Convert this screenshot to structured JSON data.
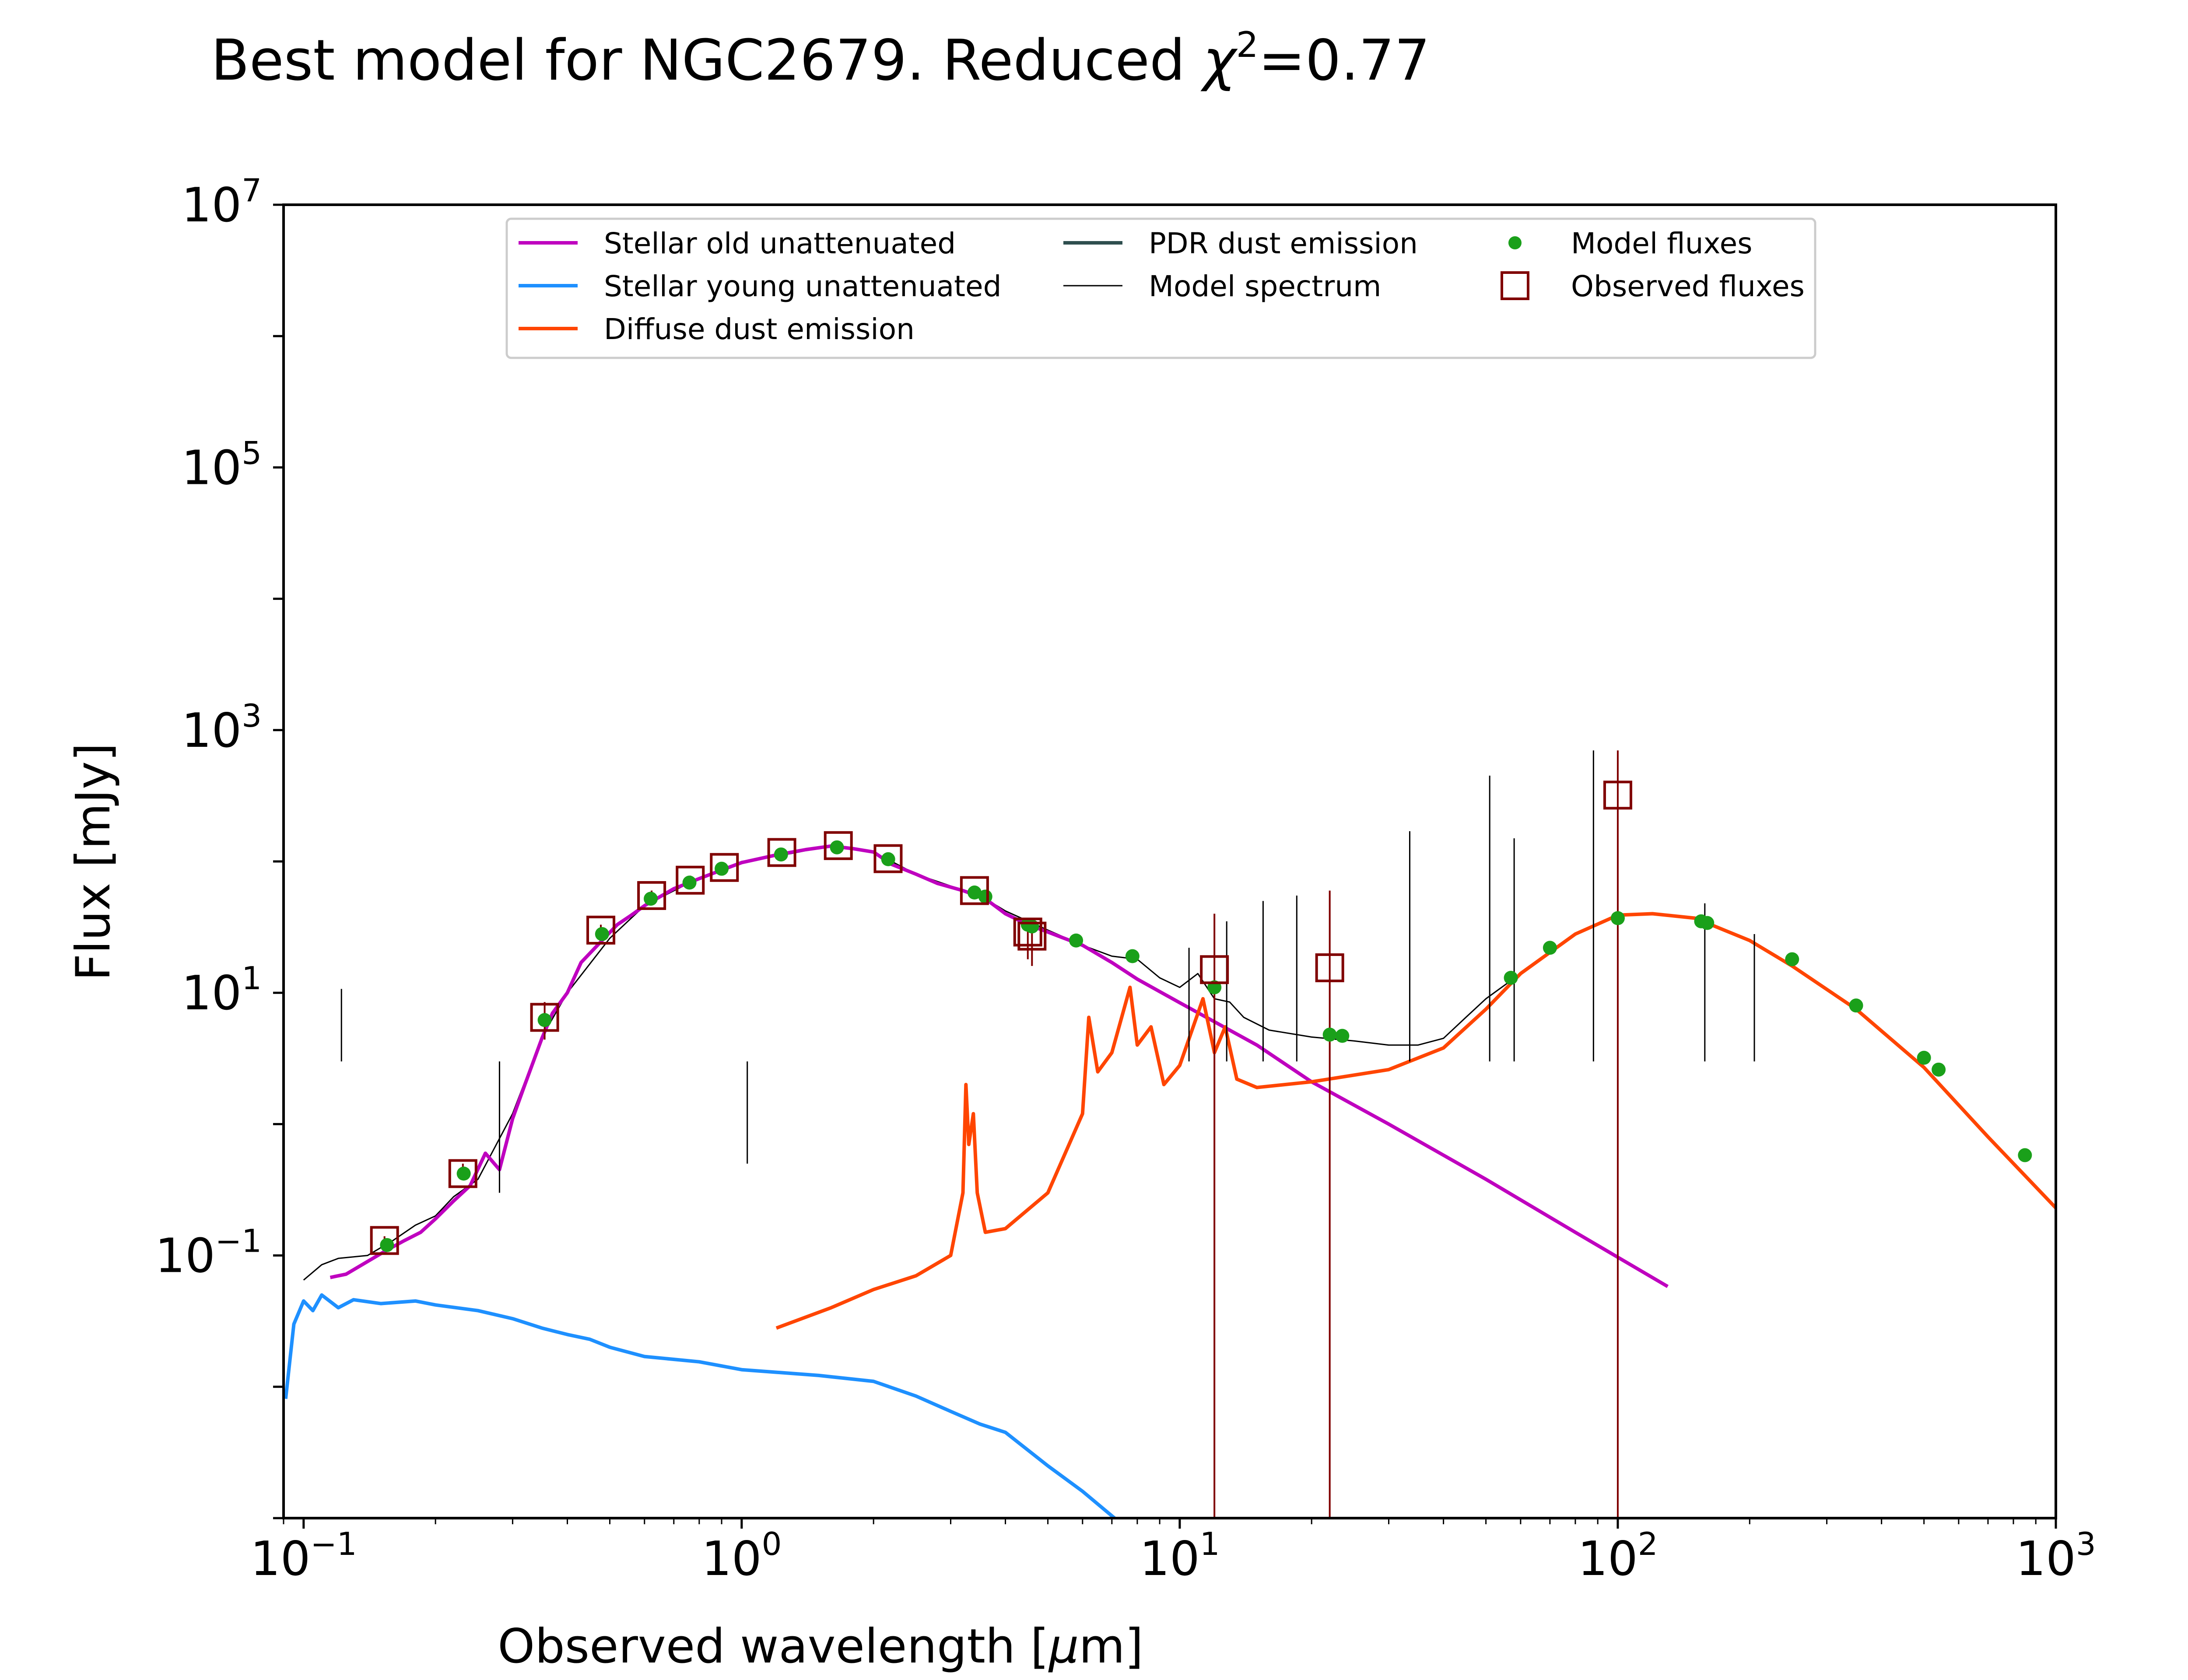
{
  "chart_data": {
    "type": "line",
    "title": "Best model for NGC2679. Reduced χ²=0.77",
    "title_parts": {
      "prefix": "Best model for NGC2679. Reduced ",
      "chi": "χ",
      "sup": "2",
      "suffix": "=0.77"
    },
    "xlabel": "Observed wavelength [μm]",
    "xlabel_parts": {
      "prefix": "Observed wavelength [",
      "mu": "μ",
      "suffix": "m]"
    },
    "ylabel": "Flux [mJy]",
    "xscale": "log",
    "yscale": "log",
    "xlim": [
      0.09,
      1000
    ],
    "ylim": [
      0.001,
      10000000
    ],
    "x_ticks": [
      {
        "value": 0.1,
        "base": "10",
        "exp": "−1"
      },
      {
        "value": 1,
        "base": "10",
        "exp": "0"
      },
      {
        "value": 10,
        "base": "10",
        "exp": "1"
      },
      {
        "value": 100,
        "base": "10",
        "exp": "2"
      },
      {
        "value": 1000,
        "base": "10",
        "exp": "3"
      }
    ],
    "y_ticks": [
      {
        "value": 0.1,
        "base": "10",
        "exp": "−1"
      },
      {
        "value": 10,
        "base": "10",
        "exp": "1"
      },
      {
        "value": 1000,
        "base": "10",
        "exp": "3"
      },
      {
        "value": 100000,
        "base": "10",
        "exp": "5"
      },
      {
        "value": 10000000,
        "base": "10",
        "exp": "7"
      }
    ],
    "grid": false,
    "legend_position": "top-center",
    "colors": {
      "stellar_old": "#bf00bf",
      "stellar_young": "#1e90ff",
      "diffuse_dust": "#ff4500",
      "pdr_dust": "#2f4f4f",
      "model_spectrum": "#000000",
      "model_fluxes": "#1aa01a",
      "observed": "#800000"
    },
    "legend": [
      {
        "key": "stellar_old",
        "label": "Stellar old unattenuated",
        "marker": "line"
      },
      {
        "key": "stellar_young",
        "label": "Stellar young unattenuated",
        "marker": "line"
      },
      {
        "key": "diffuse_dust",
        "label": "Diffuse dust emission",
        "marker": "line"
      },
      {
        "key": "pdr_dust",
        "label": "PDR dust emission",
        "marker": "line"
      },
      {
        "key": "model_spectrum",
        "label": "Model spectrum",
        "marker": "thinline"
      },
      {
        "key": "model_fluxes",
        "label": "Model fluxes",
        "marker": "dot"
      },
      {
        "key": "observed",
        "label": "Observed fluxes",
        "marker": "square"
      }
    ],
    "series": [
      {
        "key": "stellar_old",
        "name": "Stellar old unattenuated",
        "points": [
          [
            0.115,
            0.068
          ],
          [
            0.125,
            0.072
          ],
          [
            0.14,
            0.09
          ],
          [
            0.155,
            0.11
          ],
          [
            0.17,
            0.13
          ],
          [
            0.185,
            0.15
          ],
          [
            0.2,
            0.19
          ],
          [
            0.22,
            0.26
          ],
          [
            0.24,
            0.34
          ],
          [
            0.26,
            0.6
          ],
          [
            0.28,
            0.45
          ],
          [
            0.3,
            1.1
          ],
          [
            0.32,
            2.0
          ],
          [
            0.35,
            4.5
          ],
          [
            0.37,
            7.0
          ],
          [
            0.4,
            10
          ],
          [
            0.43,
            17
          ],
          [
            0.48,
            25
          ],
          [
            0.52,
            33
          ],
          [
            0.56,
            39
          ],
          [
            0.6,
            46
          ],
          [
            0.7,
            62
          ],
          [
            0.8,
            74
          ],
          [
            0.9,
            86
          ],
          [
            1.0,
            98
          ],
          [
            1.2,
            112
          ],
          [
            1.4,
            123
          ],
          [
            1.6,
            131
          ],
          [
            1.8,
            125
          ],
          [
            2.0,
            118
          ],
          [
            2.2,
            95
          ],
          [
            2.5,
            80
          ],
          [
            2.8,
            68
          ],
          [
            3.2,
            60
          ],
          [
            3.6,
            52
          ],
          [
            4.0,
            40
          ],
          [
            4.5,
            33
          ],
          [
            5.0,
            29
          ],
          [
            6.0,
            23
          ],
          [
            7.0,
            17
          ],
          [
            8.0,
            12.7
          ],
          [
            10,
            8.4
          ],
          [
            15,
            4.0
          ],
          [
            20,
            2.1
          ],
          [
            30,
            1.0
          ],
          [
            50,
            0.38
          ],
          [
            80,
            0.15
          ],
          [
            130,
            0.058
          ]
        ]
      },
      {
        "key": "stellar_young",
        "name": "Stellar young unattenuated",
        "points": [
          [
            0.091,
            0.0081
          ],
          [
            0.095,
            0.03
          ],
          [
            0.1,
            0.045
          ],
          [
            0.105,
            0.038
          ],
          [
            0.11,
            0.05
          ],
          [
            0.12,
            0.04
          ],
          [
            0.13,
            0.046
          ],
          [
            0.15,
            0.043
          ],
          [
            0.18,
            0.045
          ],
          [
            0.2,
            0.042
          ],
          [
            0.25,
            0.038
          ],
          [
            0.3,
            0.033
          ],
          [
            0.35,
            0.028
          ],
          [
            0.4,
            0.025
          ],
          [
            0.45,
            0.023
          ],
          [
            0.5,
            0.02
          ],
          [
            0.6,
            0.017
          ],
          [
            0.8,
            0.0155
          ],
          [
            1.0,
            0.0135
          ],
          [
            1.5,
            0.0122
          ],
          [
            2.0,
            0.011
          ],
          [
            2.5,
            0.0085
          ],
          [
            3.0,
            0.0065
          ],
          [
            3.5,
            0.0052
          ],
          [
            4.0,
            0.0045
          ],
          [
            5.0,
            0.0025
          ],
          [
            6.0,
            0.0016
          ],
          [
            7.1,
            0.001
          ]
        ]
      },
      {
        "key": "diffuse_dust",
        "name": "Diffuse dust emission",
        "points": [
          [
            1.2,
            0.028
          ],
          [
            1.6,
            0.04
          ],
          [
            2.0,
            0.055
          ],
          [
            2.5,
            0.07
          ],
          [
            3.0,
            0.1
          ],
          [
            3.2,
            0.3
          ],
          [
            3.25,
            2.0
          ],
          [
            3.3,
            0.7
          ],
          [
            3.38,
            1.2
          ],
          [
            3.45,
            0.3
          ],
          [
            3.6,
            0.15
          ],
          [
            4.0,
            0.16
          ],
          [
            5.0,
            0.3
          ],
          [
            6.0,
            1.2
          ],
          [
            6.2,
            6.5
          ],
          [
            6.5,
            2.5
          ],
          [
            7.0,
            3.5
          ],
          [
            7.7,
            11
          ],
          [
            8.0,
            4
          ],
          [
            8.6,
            5.5
          ],
          [
            9.2,
            2.0
          ],
          [
            10.0,
            2.8
          ],
          [
            11.3,
            9
          ],
          [
            12.0,
            3.5
          ],
          [
            12.7,
            5.5
          ],
          [
            13.5,
            2.2
          ],
          [
            15,
            1.9
          ],
          [
            20,
            2.1
          ],
          [
            30,
            2.6
          ],
          [
            40,
            3.8
          ],
          [
            50,
            7.5
          ],
          [
            60,
            14
          ],
          [
            80,
            28
          ],
          [
            100,
            39
          ],
          [
            120,
            40
          ],
          [
            150,
            37
          ],
          [
            200,
            25
          ],
          [
            250,
            16
          ],
          [
            350,
            7.5
          ],
          [
            500,
            2.7
          ],
          [
            700,
            0.8
          ],
          [
            1000,
            0.23
          ]
        ]
      },
      {
        "key": "model_spectrum",
        "name": "Model spectrum",
        "points": [
          [
            0.1,
            0.065
          ],
          [
            0.11,
            0.085
          ],
          [
            0.12,
            0.095
          ],
          [
            0.14,
            0.1
          ],
          [
            0.16,
            0.13
          ],
          [
            0.18,
            0.17
          ],
          [
            0.2,
            0.2
          ],
          [
            0.22,
            0.28
          ],
          [
            0.25,
            0.38
          ],
          [
            0.3,
            1.2
          ],
          [
            0.35,
            4.6
          ],
          [
            0.4,
            10
          ],
          [
            0.5,
            26
          ],
          [
            0.6,
            46
          ],
          [
            0.8,
            75
          ],
          [
            1.0,
            100
          ],
          [
            1.3,
            115
          ],
          [
            1.6,
            132
          ],
          [
            2.0,
            118
          ],
          [
            2.5,
            80
          ],
          [
            3.0,
            65
          ],
          [
            3.5,
            55
          ],
          [
            4.0,
            42
          ],
          [
            5.0,
            30
          ],
          [
            6.0,
            23
          ],
          [
            7.0,
            19
          ],
          [
            8.0,
            18
          ],
          [
            9.0,
            13
          ],
          [
            10,
            11
          ],
          [
            11,
            14
          ],
          [
            12,
            9
          ],
          [
            13,
            8.5
          ],
          [
            14,
            6.5
          ],
          [
            16,
            5.2
          ],
          [
            20,
            4.6
          ],
          [
            25,
            4.3
          ],
          [
            30,
            4.0
          ],
          [
            35,
            4.0
          ],
          [
            40,
            4.5
          ],
          [
            45,
            6.5
          ],
          [
            50,
            9
          ],
          [
            60,
            14
          ],
          [
            80,
            28
          ],
          [
            100,
            39
          ],
          [
            120,
            40
          ],
          [
            150,
            37
          ],
          [
            200,
            25
          ],
          [
            250,
            16
          ],
          [
            350,
            7.5
          ],
          [
            500,
            2.7
          ],
          [
            700,
            0.8
          ],
          [
            1000,
            0.23
          ]
        ]
      }
    ],
    "spectrum_lines": [
      [
        0.122,
        10.7
      ],
      [
        0.28,
        0.3
      ],
      [
        1.03,
        0.5
      ],
      [
        10.5,
        22
      ],
      [
        12.8,
        35
      ],
      [
        15.5,
        50
      ],
      [
        18.5,
        55
      ],
      [
        33.5,
        170
      ],
      [
        51,
        450
      ],
      [
        58,
        150
      ],
      [
        88,
        700
      ],
      [
        158,
        48
      ],
      [
        205,
        28
      ]
    ],
    "model_fluxes": [
      [
        0.155,
        0.12
      ],
      [
        0.232,
        0.42
      ],
      [
        0.355,
        6.2
      ],
      [
        0.48,
        28
      ],
      [
        0.62,
        52
      ],
      [
        0.76,
        69
      ],
      [
        0.9,
        88
      ],
      [
        1.23,
        113
      ],
      [
        1.65,
        128
      ],
      [
        2.16,
        104
      ],
      [
        3.4,
        58
      ],
      [
        3.6,
        54
      ],
      [
        4.5,
        33
      ],
      [
        4.6,
        32
      ],
      [
        5.8,
        25
      ],
      [
        7.8,
        19
      ],
      [
        12,
        11
      ],
      [
        22,
        4.8
      ],
      [
        23.5,
        4.7
      ],
      [
        57,
        13
      ],
      [
        70,
        22
      ],
      [
        100,
        37
      ],
      [
        155,
        35
      ],
      [
        160,
        34
      ],
      [
        250,
        18
      ],
      [
        350,
        8
      ],
      [
        500,
        3.2
      ],
      [
        540,
        2.6
      ],
      [
        850,
        0.58
      ]
    ],
    "observed_fluxes": [
      {
        "x": 0.153,
        "y": 0.13,
        "err_lo": 0.115,
        "err_hi": 0.14
      },
      {
        "x": 0.231,
        "y": 0.42,
        "err_lo": 0.38,
        "err_hi": 0.5
      },
      {
        "x": 0.355,
        "y": 6.5,
        "err_lo": 4.4,
        "err_hi": 8.5
      },
      {
        "x": 0.477,
        "y": 30,
        "err_lo": 27,
        "err_hi": 33
      },
      {
        "x": 0.623,
        "y": 55,
        "err_lo": 50,
        "err_hi": 60
      },
      {
        "x": 0.763,
        "y": 72,
        "err_lo": 66,
        "err_hi": 78
      },
      {
        "x": 0.913,
        "y": 90,
        "err_lo": 84,
        "err_hi": 96
      },
      {
        "x": 1.235,
        "y": 117,
        "err_lo": 108,
        "err_hi": 126
      },
      {
        "x": 1.662,
        "y": 132,
        "err_lo": 122,
        "err_hi": 143
      },
      {
        "x": 2.159,
        "y": 105,
        "err_lo": 97,
        "err_hi": 113
      },
      {
        "x": 3.4,
        "y": 60,
        "err_lo": 55,
        "err_hi": 65
      },
      {
        "x": 4.5,
        "y": 29,
        "err_lo": 18,
        "err_hi": 35
      },
      {
        "x": 4.6,
        "y": 27,
        "err_lo": 16,
        "err_hi": 32
      },
      {
        "x": 12,
        "y": 15,
        "err_lo": 0.001,
        "err_hi": 40
      },
      {
        "x": 22,
        "y": 15.5,
        "err_lo": 0.001,
        "err_hi": 60
      },
      {
        "x": 100,
        "y": 320,
        "err_lo": 0.001,
        "err_hi": 700
      }
    ]
  }
}
